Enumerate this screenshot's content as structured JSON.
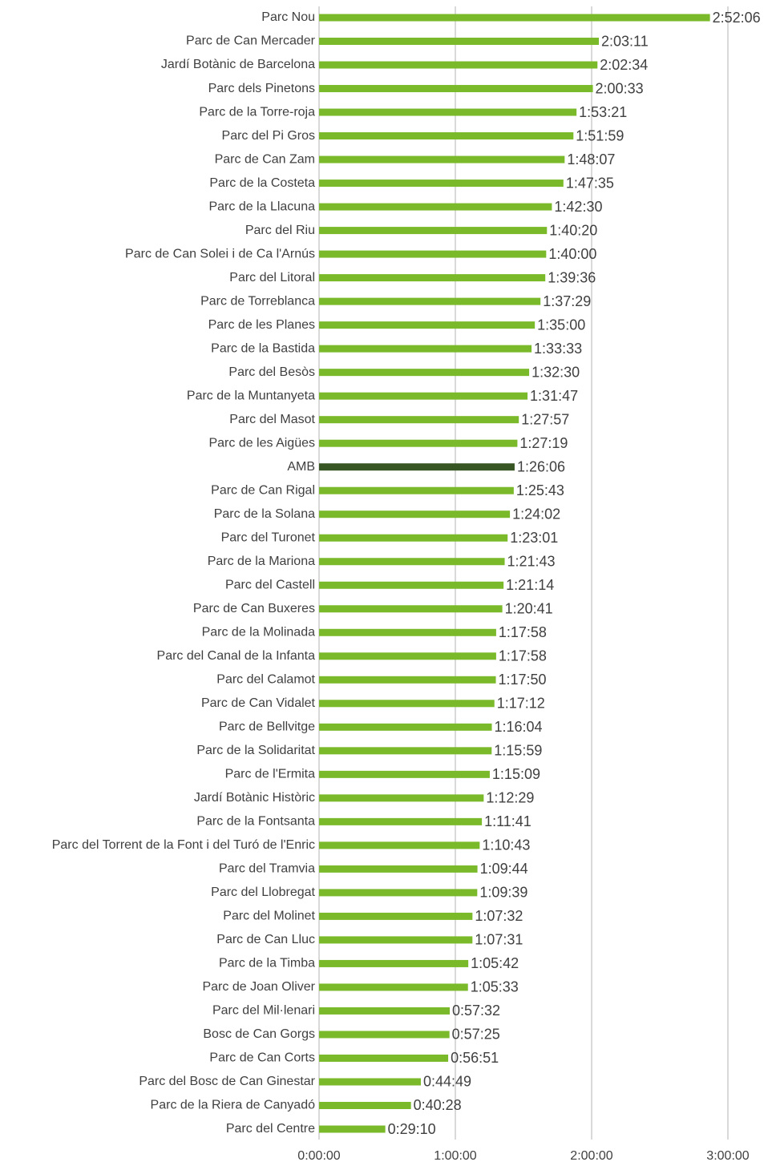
{
  "chart_data": {
    "type": "barh",
    "categories": [
      "Parc Nou",
      "Parc de Can Mercader",
      "Jardí Botànic de Barcelona",
      "Parc dels Pinetons",
      "Parc de la Torre-roja",
      "Parc del Pi Gros",
      "Parc de Can Zam",
      "Parc de la Costeta",
      "Parc de la Llacuna",
      "Parc del Riu",
      "Parc de Can Solei i de Ca l'Arnús",
      "Parc del Litoral",
      "Parc de Torreblanca",
      "Parc de les Planes",
      "Parc de la Bastida",
      "Parc del Besòs",
      "Parc de la Muntanyeta",
      "Parc del Masot",
      "Parc de les Aigües",
      "AMB",
      "Parc de Can Rigal",
      "Parc de la Solana",
      "Parc del Turonet",
      "Parc de la Mariona",
      "Parc del Castell",
      "Parc de Can Buxeres",
      "Parc de la Molinada",
      "Parc del Canal de la Infanta",
      "Parc del Calamot",
      "Parc de Can Vidalet",
      "Parc de Bellvitge",
      "Parc de la Solidaritat",
      "Parc de l'Ermita",
      "Jardí Botànic Històric",
      "Parc de la Fontsanta",
      "Parc del Torrent de la Font i del Turó de l'Enric",
      "Parc del Tramvia",
      "Parc del Llobregat",
      "Parc del Molinet",
      "Parc de Can Lluc",
      "Parc de la Timba",
      "Parc de Joan Oliver",
      "Parc del Mil·lenari",
      "Bosc de Can Gorgs",
      "Parc de Can Corts",
      "Parc del Bosc de Can Ginestar",
      "Parc de la Riera de Canyadó",
      "Parc del Centre"
    ],
    "values": [
      10326,
      7391,
      7354,
      7233,
      6801,
      6719,
      6487,
      6455,
      6150,
      6020,
      6000,
      5976,
      5849,
      5700,
      5613,
      5550,
      5507,
      5277,
      5239,
      5166,
      5143,
      5042,
      4981,
      4903,
      4874,
      4841,
      4678,
      4678,
      4670,
      4632,
      4564,
      4559,
      4509,
      4349,
      4301,
      4243,
      4184,
      4179,
      4052,
      4051,
      3942,
      3933,
      3452,
      3445,
      3411,
      2689,
      2428,
      1750
    ],
    "value_labels": [
      "2:52:06",
      "2:03:11",
      "2:02:34",
      "2:00:33",
      "1:53:21",
      "1:51:59",
      "1:48:07",
      "1:47:35",
      "1:42:30",
      "1:40:20",
      "1:40:00",
      "1:39:36",
      "1:37:29",
      "1:35:00",
      "1:33:33",
      "1:32:30",
      "1:31:47",
      "1:27:57",
      "1:27:19",
      "1:26:06",
      "1:25:43",
      "1:24:02",
      "1:23:01",
      "1:21:43",
      "1:21:14",
      "1:20:41",
      "1:17:58",
      "1:17:58",
      "1:17:50",
      "1:17:12",
      "1:16:04",
      "1:15:59",
      "1:15:09",
      "1:12:29",
      "1:11:41",
      "1:10:43",
      "1:09:44",
      "1:09:39",
      "1:07:32",
      "1:07:31",
      "1:05:42",
      "1:05:33",
      "0:57:32",
      "0:57:25",
      "0:56:51",
      "0:44:49",
      "0:40:28",
      "0:29:10"
    ],
    "colors": [
      "#7ab929",
      "#7ab929",
      "#7ab929",
      "#7ab929",
      "#7ab929",
      "#7ab929",
      "#7ab929",
      "#7ab929",
      "#7ab929",
      "#7ab929",
      "#7ab929",
      "#7ab929",
      "#7ab929",
      "#7ab929",
      "#7ab929",
      "#7ab929",
      "#7ab929",
      "#7ab929",
      "#7ab929",
      "#375623",
      "#7ab929",
      "#7ab929",
      "#7ab929",
      "#7ab929",
      "#7ab929",
      "#7ab929",
      "#7ab929",
      "#7ab929",
      "#7ab929",
      "#7ab929",
      "#7ab929",
      "#7ab929",
      "#7ab929",
      "#7ab929",
      "#7ab929",
      "#7ab929",
      "#7ab929",
      "#7ab929",
      "#7ab929",
      "#7ab929",
      "#7ab929",
      "#7ab929",
      "#7ab929",
      "#7ab929",
      "#7ab929",
      "#7ab929",
      "#7ab929",
      "#7ab929"
    ],
    "xlim": [
      0,
      11950
    ],
    "xticks": [
      {
        "value": 0,
        "label": "0:00:00"
      },
      {
        "value": 3600,
        "label": "1:00:00"
      },
      {
        "value": 7200,
        "label": "2:00:00"
      },
      {
        "value": 10800,
        "label": "3:00:00"
      }
    ],
    "grid": true
  }
}
